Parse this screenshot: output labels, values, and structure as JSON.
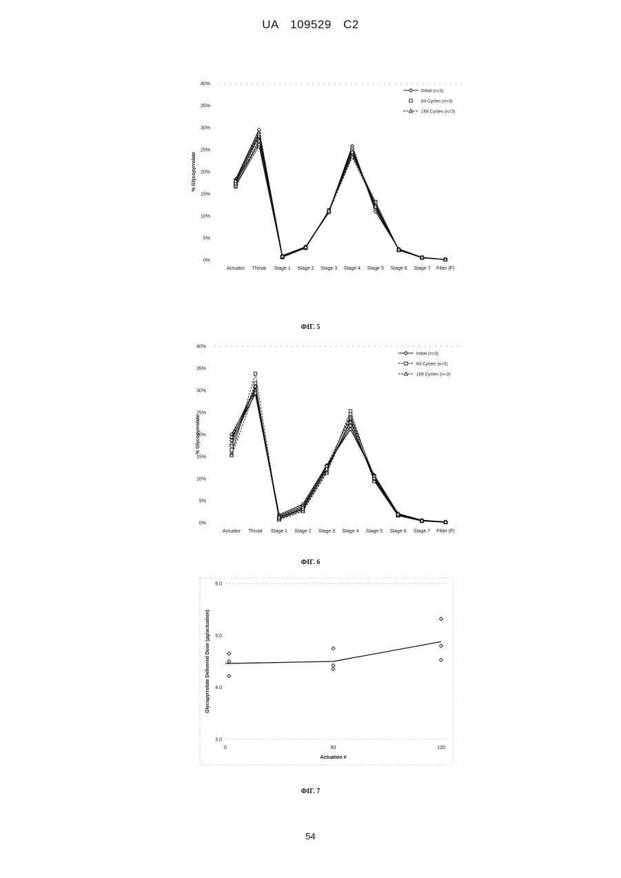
{
  "header": {
    "country": "UA",
    "number": "109529",
    "kind": "C2"
  },
  "page_number": "54",
  "figures": {
    "fig5": {
      "caption": "ФІГ. 5"
    },
    "fig6": {
      "caption": "ФІГ. 6"
    },
    "fig7": {
      "caption": "ФІГ. 7"
    }
  },
  "chart_data": [
    {
      "id": "fig5",
      "type": "line",
      "title": "",
      "xlabel": "",
      "ylabel": "% Glycopyrrolate",
      "categories": [
        "Actuator",
        "Throat",
        "Stage 1",
        "Stage 2",
        "Stage 3",
        "Stage 4",
        "Stage 5",
        "Stage 6",
        "Stage 7",
        "Filter (F)"
      ],
      "yticks": [
        "0%",
        "5%",
        "10%",
        "15%",
        "20%",
        "25%",
        "30%",
        "35%",
        "40%"
      ],
      "ylim": [
        0,
        40
      ],
      "legend_position": "top-right",
      "series": [
        {
          "name": "Initial (n=3)",
          "marker": "diamond",
          "dash": "solid",
          "runs": [
            [
              18.3,
              29.5,
              1.0,
              3.0,
              11.0,
              25.8,
              11.0,
              2.5,
              0.6,
              0.1
            ],
            [
              18.0,
              28.8,
              0.9,
              2.9,
              10.8,
              25.3,
              11.6,
              2.4,
              0.6,
              0.1
            ],
            [
              17.6,
              28.0,
              0.8,
              2.8,
              11.1,
              24.6,
              12.0,
              2.3,
              0.5,
              0.1
            ]
          ]
        },
        {
          "name": "84 Cycles (n=3)",
          "marker": "square",
          "dash": "none",
          "runs": [
            [
              16.6,
              27.2,
              0.6,
              2.8,
              11.2,
              24.0,
              13.2,
              2.3,
              0.5,
              0.1
            ],
            [
              17.0,
              26.5,
              0.7,
              2.9,
              11.0,
              24.8,
              12.6,
              2.2,
              0.5,
              0.1
            ],
            [
              16.8,
              25.8,
              0.6,
              2.7,
              11.3,
              23.6,
              12.9,
              2.4,
              0.6,
              0.1
            ]
          ]
        },
        {
          "name": "168 Cycles (n=3)",
          "marker": "triangle",
          "dash": "dashed",
          "runs": [
            [
              17.2,
              28.5,
              0.8,
              3.0,
              11.1,
              24.2,
              12.3,
              2.3,
              0.6,
              0.1
            ],
            [
              17.5,
              27.0,
              0.7,
              2.8,
              10.9,
              23.3,
              12.5,
              2.2,
              0.5,
              0.1
            ],
            [
              17.9,
              26.2,
              0.9,
              2.9,
              11.2,
              24.5,
              12.1,
              2.4,
              0.6,
              0.1
            ]
          ]
        }
      ]
    },
    {
      "id": "fig6",
      "type": "line",
      "title": "",
      "xlabel": "",
      "ylabel": "% Glycopyrrolate",
      "categories": [
        "Actuator",
        "Throat",
        "Stage 1",
        "Stage 2",
        "Stage 3",
        "Stage 4",
        "Stage 5",
        "Stage 6",
        "Stage 7",
        "Filter (F)"
      ],
      "yticks": [
        "0%",
        "5%",
        "10%",
        "15%",
        "20%",
        "25%",
        "30%",
        "35%",
        "40%"
      ],
      "ylim": [
        0,
        40
      ],
      "legend_position": "top-right",
      "series": [
        {
          "name": "Initial (n=3)",
          "marker": "diamond",
          "dash": "solid",
          "runs": [
            [
              20.0,
              30.0,
              1.8,
              4.2,
              13.0,
              21.2,
              10.8,
              2.1,
              0.6,
              0.2
            ],
            [
              19.2,
              29.2,
              1.5,
              3.8,
              12.5,
              22.0,
              10.2,
              1.9,
              0.5,
              0.2
            ],
            [
              18.6,
              30.6,
              1.2,
              3.3,
              12.0,
              23.0,
              9.8,
              1.8,
              0.5,
              0.2
            ]
          ]
        },
        {
          "name": "84 Cycles (n=3)",
          "marker": "square",
          "dash": "dashed",
          "runs": [
            [
              15.5,
              33.8,
              0.8,
              2.8,
              11.5,
              25.3,
              9.5,
              1.6,
              0.4,
              0.1
            ],
            [
              16.5,
              31.6,
              0.9,
              3.0,
              12.0,
              24.6,
              10.0,
              1.7,
              0.4,
              0.1
            ],
            [
              17.5,
              30.8,
              1.0,
              3.2,
              12.8,
              24.0,
              10.5,
              1.8,
              0.5,
              0.1
            ]
          ]
        },
        {
          "name": "168 Cycles (n=3)",
          "marker": "triangle",
          "dash": "dashed",
          "runs": [
            [
              15.3,
              30.0,
              0.7,
              2.6,
              11.3,
              23.5,
              9.4,
              1.6,
              0.4,
              0.1
            ],
            [
              18.0,
              29.5,
              1.0,
              3.1,
              12.3,
              22.8,
              10.1,
              1.8,
              0.5,
              0.1
            ],
            [
              19.5,
              31.0,
              1.3,
              3.5,
              12.9,
              23.8,
              10.6,
              2.0,
              0.5,
              0.2
            ]
          ]
        }
      ]
    },
    {
      "id": "fig7",
      "type": "scatter",
      "title": "",
      "xlabel": "Actuation #",
      "ylabel": "Glycopyrrolate Delivered Dose (µg/actuation)",
      "xticks": [
        "0",
        "60",
        "120"
      ],
      "yticks": [
        "3.0",
        "4.0",
        "5.0",
        "6.0"
      ],
      "xlim": [
        0,
        120
      ],
      "ylim": [
        3.0,
        6.0
      ],
      "points": [
        [
          2,
          4.65
        ],
        [
          2,
          4.5
        ],
        [
          2,
          4.22
        ],
        [
          60,
          4.75
        ],
        [
          60,
          4.42
        ],
        [
          60,
          4.35
        ],
        [
          120,
          5.32
        ],
        [
          120,
          4.8
        ],
        [
          120,
          4.53
        ]
      ],
      "mean_line": [
        [
          0,
          4.46
        ],
        [
          60,
          4.5
        ],
        [
          120,
          4.88
        ]
      ]
    }
  ]
}
